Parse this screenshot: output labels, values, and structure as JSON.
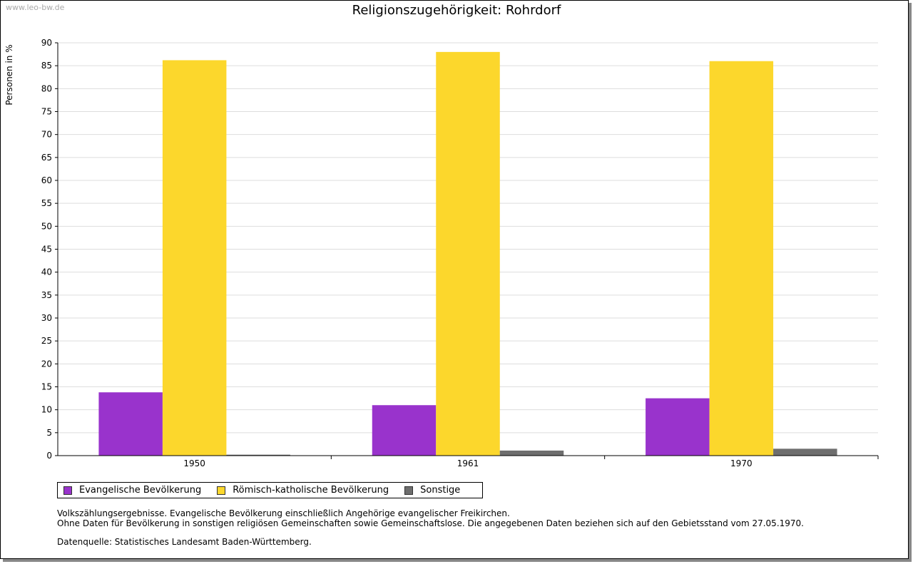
{
  "watermark": "www.leo-bw.de",
  "chart_data": {
    "type": "bar",
    "title": "Religionszugehörigkeit: Rohrdorf",
    "xlabel": "",
    "ylabel": "Personen in %",
    "ylim": [
      0,
      90
    ],
    "ytick_step": 5,
    "grid": true,
    "legend_position": "bottom-left",
    "categories": [
      "1950",
      "1961",
      "1970"
    ],
    "series": [
      {
        "name": "Evangelische Bevölkerung",
        "color": "#9933CC",
        "values": [
          13.8,
          11.0,
          12.5
        ]
      },
      {
        "name": "Römisch-katholische Bevölkerung",
        "color": "#FCD72C",
        "values": [
          86.2,
          88.0,
          86.0
        ]
      },
      {
        "name": "Sonstige",
        "color": "#6E6E6E",
        "values": [
          0.2,
          1.1,
          1.5
        ]
      }
    ]
  },
  "notes": {
    "line1": "Volkszählungsergebnisse. Evangelische Bevölkerung einschließlich Angehörige evangelischer Freikirchen.",
    "line2": "Ohne Daten für Bevölkerung in sonstigen religiösen Gemeinschaften sowie Gemeinschaftslose. Die angegebenen Daten beziehen sich auf den Gebietsstand vom 27.05.1970.",
    "source": "Datenquelle: Statistisches Landesamt Baden-Württemberg."
  }
}
